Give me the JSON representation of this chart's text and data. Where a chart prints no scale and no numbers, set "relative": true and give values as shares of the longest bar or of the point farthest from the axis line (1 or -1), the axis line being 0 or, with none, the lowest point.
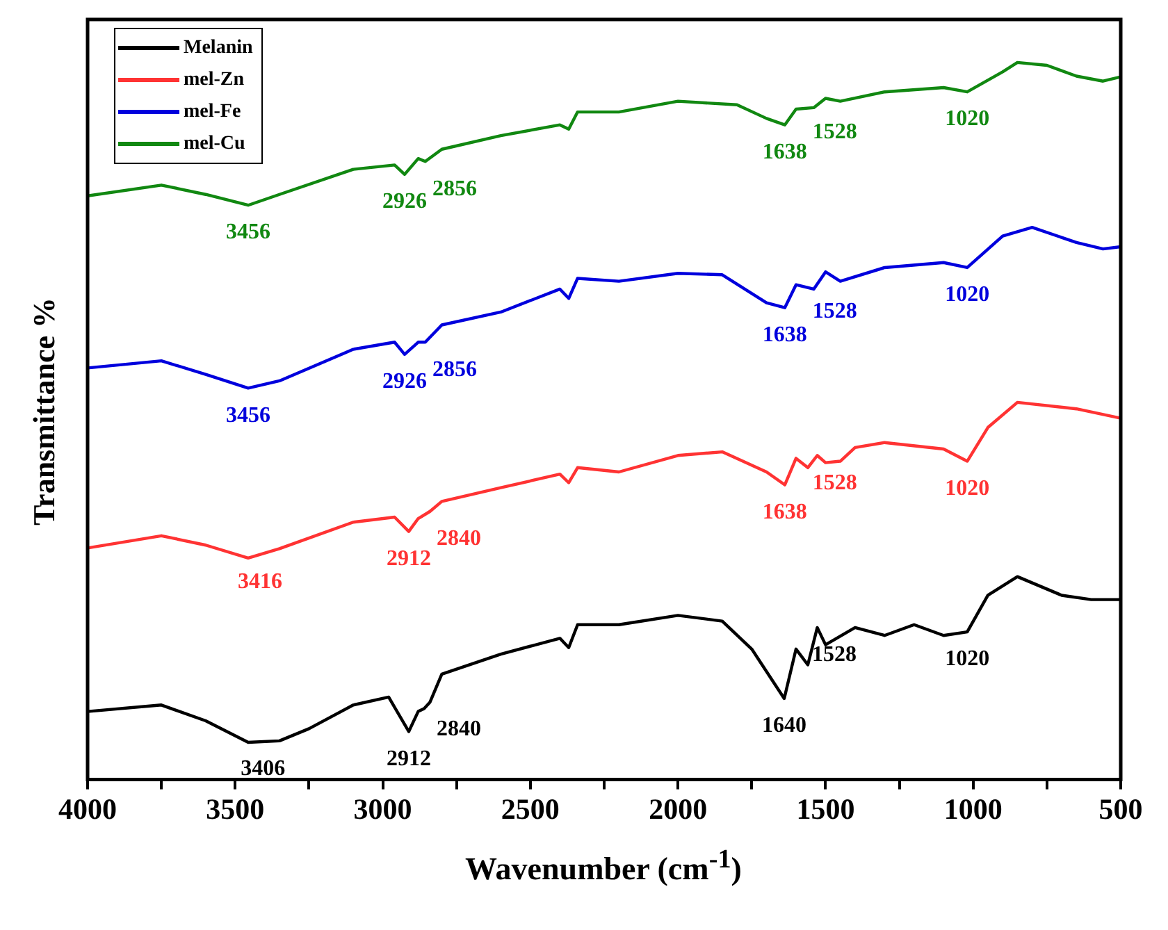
{
  "chart_data": {
    "type": "line",
    "xlabel": "Wavenumber (cm$^{-1}$)",
    "ylabel": "Transmittance %",
    "relative": true,
    "xlim": [
      4000,
      500
    ],
    "xticks": [
      4000,
      {
        "value": 3750,
        "label": null
      },
      3500,
      {
        "value": 3250,
        "label": null
      },
      3000,
      {
        "value": 2750,
        "label": null
      },
      2500,
      {
        "value": 2250,
        "label": null
      },
      2000,
      {
        "value": 1750,
        "label": null
      },
      1500,
      {
        "value": 1250,
        "label": null
      },
      1000,
      {
        "value": 750,
        "label": null
      },
      500
    ],
    "grid": false,
    "legend": "top left",
    "marker": "none",
    "line_style": "solid",
    "series": [
      {
        "name": "Melanin",
        "color": "#000000",
        "x": [
          4000,
          3750,
          3600,
          3456,
          3350,
          3250,
          3100,
          2980,
          2912,
          2880,
          2860,
          2840,
          2800,
          2600,
          2400,
          2370,
          2340,
          2200,
          2000,
          1850,
          1750,
          1640,
          1600,
          1560,
          1528,
          1500,
          1400,
          1300,
          1200,
          1100,
          1020,
          950,
          850,
          700,
          600,
          500
        ],
        "values": [
          0.095,
          0.104,
          0.082,
          0.052,
          0.054,
          0.071,
          0.104,
          0.115,
          0.067,
          0.095,
          0.099,
          0.108,
          0.147,
          0.175,
          0.197,
          0.184,
          0.216,
          0.216,
          0.229,
          0.221,
          0.182,
          0.113,
          0.182,
          0.16,
          0.212,
          0.188,
          0.212,
          0.201,
          0.216,
          0.201,
          0.206,
          0.257,
          0.283,
          0.257,
          0.251,
          0.251
        ]
      },
      {
        "name": "mel-Zn",
        "color": "#ff3333",
        "x": [
          4000,
          3750,
          3600,
          3456,
          3350,
          3100,
          2960,
          2912,
          2880,
          2840,
          2800,
          2600,
          2400,
          2370,
          2340,
          2200,
          2000,
          1850,
          1700,
          1638,
          1600,
          1560,
          1528,
          1500,
          1450,
          1400,
          1300,
          1100,
          1020,
          950,
          850,
          650,
          500
        ],
        "values": [
          0.323,
          0.34,
          0.327,
          0.309,
          0.322,
          0.359,
          0.366,
          0.346,
          0.364,
          0.374,
          0.388,
          0.407,
          0.426,
          0.414,
          0.435,
          0.429,
          0.452,
          0.457,
          0.429,
          0.411,
          0.448,
          0.435,
          0.452,
          0.442,
          0.444,
          0.463,
          0.47,
          0.461,
          0.444,
          0.491,
          0.526,
          0.517,
          0.504
        ]
      },
      {
        "name": "mel-Fe",
        "color": "#0000dd",
        "x": [
          4000,
          3750,
          3600,
          3456,
          3350,
          3100,
          2960,
          2926,
          2880,
          2856,
          2800,
          2600,
          2400,
          2370,
          2340,
          2200,
          2000,
          1850,
          1700,
          1638,
          1600,
          1540,
          1500,
          1450,
          1300,
          1100,
          1020,
          900,
          800,
          650,
          560,
          500
        ],
        "values": [
          0.574,
          0.584,
          0.565,
          0.546,
          0.556,
          0.6,
          0.61,
          0.593,
          0.61,
          0.61,
          0.634,
          0.652,
          0.684,
          0.671,
          0.699,
          0.695,
          0.706,
          0.704,
          0.665,
          0.658,
          0.69,
          0.684,
          0.708,
          0.695,
          0.714,
          0.721,
          0.714,
          0.758,
          0.77,
          0.749,
          0.74,
          0.743
        ]
      },
      {
        "name": "mel-Cu",
        "color": "#118811",
        "x": [
          4000,
          3750,
          3600,
          3456,
          3350,
          3100,
          2960,
          2926,
          2880,
          2856,
          2800,
          2600,
          2400,
          2370,
          2340,
          2200,
          2000,
          1800,
          1700,
          1638,
          1600,
          1540,
          1500,
          1450,
          1300,
          1100,
          1020,
          900,
          850,
          750,
          650,
          560,
          500
        ],
        "values": [
          0.814,
          0.829,
          0.816,
          0.801,
          0.816,
          0.851,
          0.857,
          0.844,
          0.866,
          0.862,
          0.879,
          0.898,
          0.913,
          0.907,
          0.931,
          0.931,
          0.946,
          0.941,
          0.922,
          0.913,
          0.935,
          0.937,
          0.95,
          0.946,
          0.959,
          0.965,
          0.959,
          0.987,
          1,
          0.996,
          0.981,
          0.974,
          0.98
        ]
      }
    ],
    "annotations": [
      {
        "text": "3406",
        "x": 3406,
        "y": 0.053
      },
      {
        "text": "2912",
        "x": 2912,
        "y": 0.067
      },
      {
        "text": "2840",
        "x": 2840,
        "y": 0.108
      },
      {
        "text": "1640",
        "x": 1640,
        "y": 0.113
      },
      {
        "text": "1528",
        "x": 1528,
        "y": 0.212
      },
      {
        "text": "1020",
        "x": 1020,
        "y": 0.206
      },
      {
        "text": "3416",
        "x": 3416,
        "y": 0.314
      },
      {
        "text": "2912",
        "x": 2912,
        "y": 0.346
      },
      {
        "text": "2840",
        "x": 2840,
        "y": 0.374
      },
      {
        "text": "1638",
        "x": 1638,
        "y": 0.411
      },
      {
        "text": "1528",
        "x": 1528,
        "y": 0.452
      },
      {
        "text": "1020",
        "x": 1020,
        "y": 0.444
      },
      {
        "text": "3456",
        "x": 3456,
        "y": 0.546
      },
      {
        "text": "2926",
        "x": 2926,
        "y": 0.593
      },
      {
        "text": "2856",
        "x": 2856,
        "y": 0.61
      },
      {
        "text": "1638",
        "x": 1638,
        "y": 0.658
      },
      {
        "text": "1528",
        "x": 1528,
        "y": 0.691
      },
      {
        "text": "1020",
        "x": 1020,
        "y": 0.714
      },
      {
        "text": "3456",
        "x": 3456,
        "y": 0.801
      },
      {
        "text": "2926",
        "x": 2926,
        "y": 0.844
      },
      {
        "text": "2856",
        "x": 2856,
        "y": 0.862
      },
      {
        "text": "1638",
        "x": 1638,
        "y": 0.913
      },
      {
        "text": "1528",
        "x": 1528,
        "y": 0.941
      },
      {
        "text": "1020",
        "x": 1020,
        "y": 0.959
      }
    ]
  }
}
